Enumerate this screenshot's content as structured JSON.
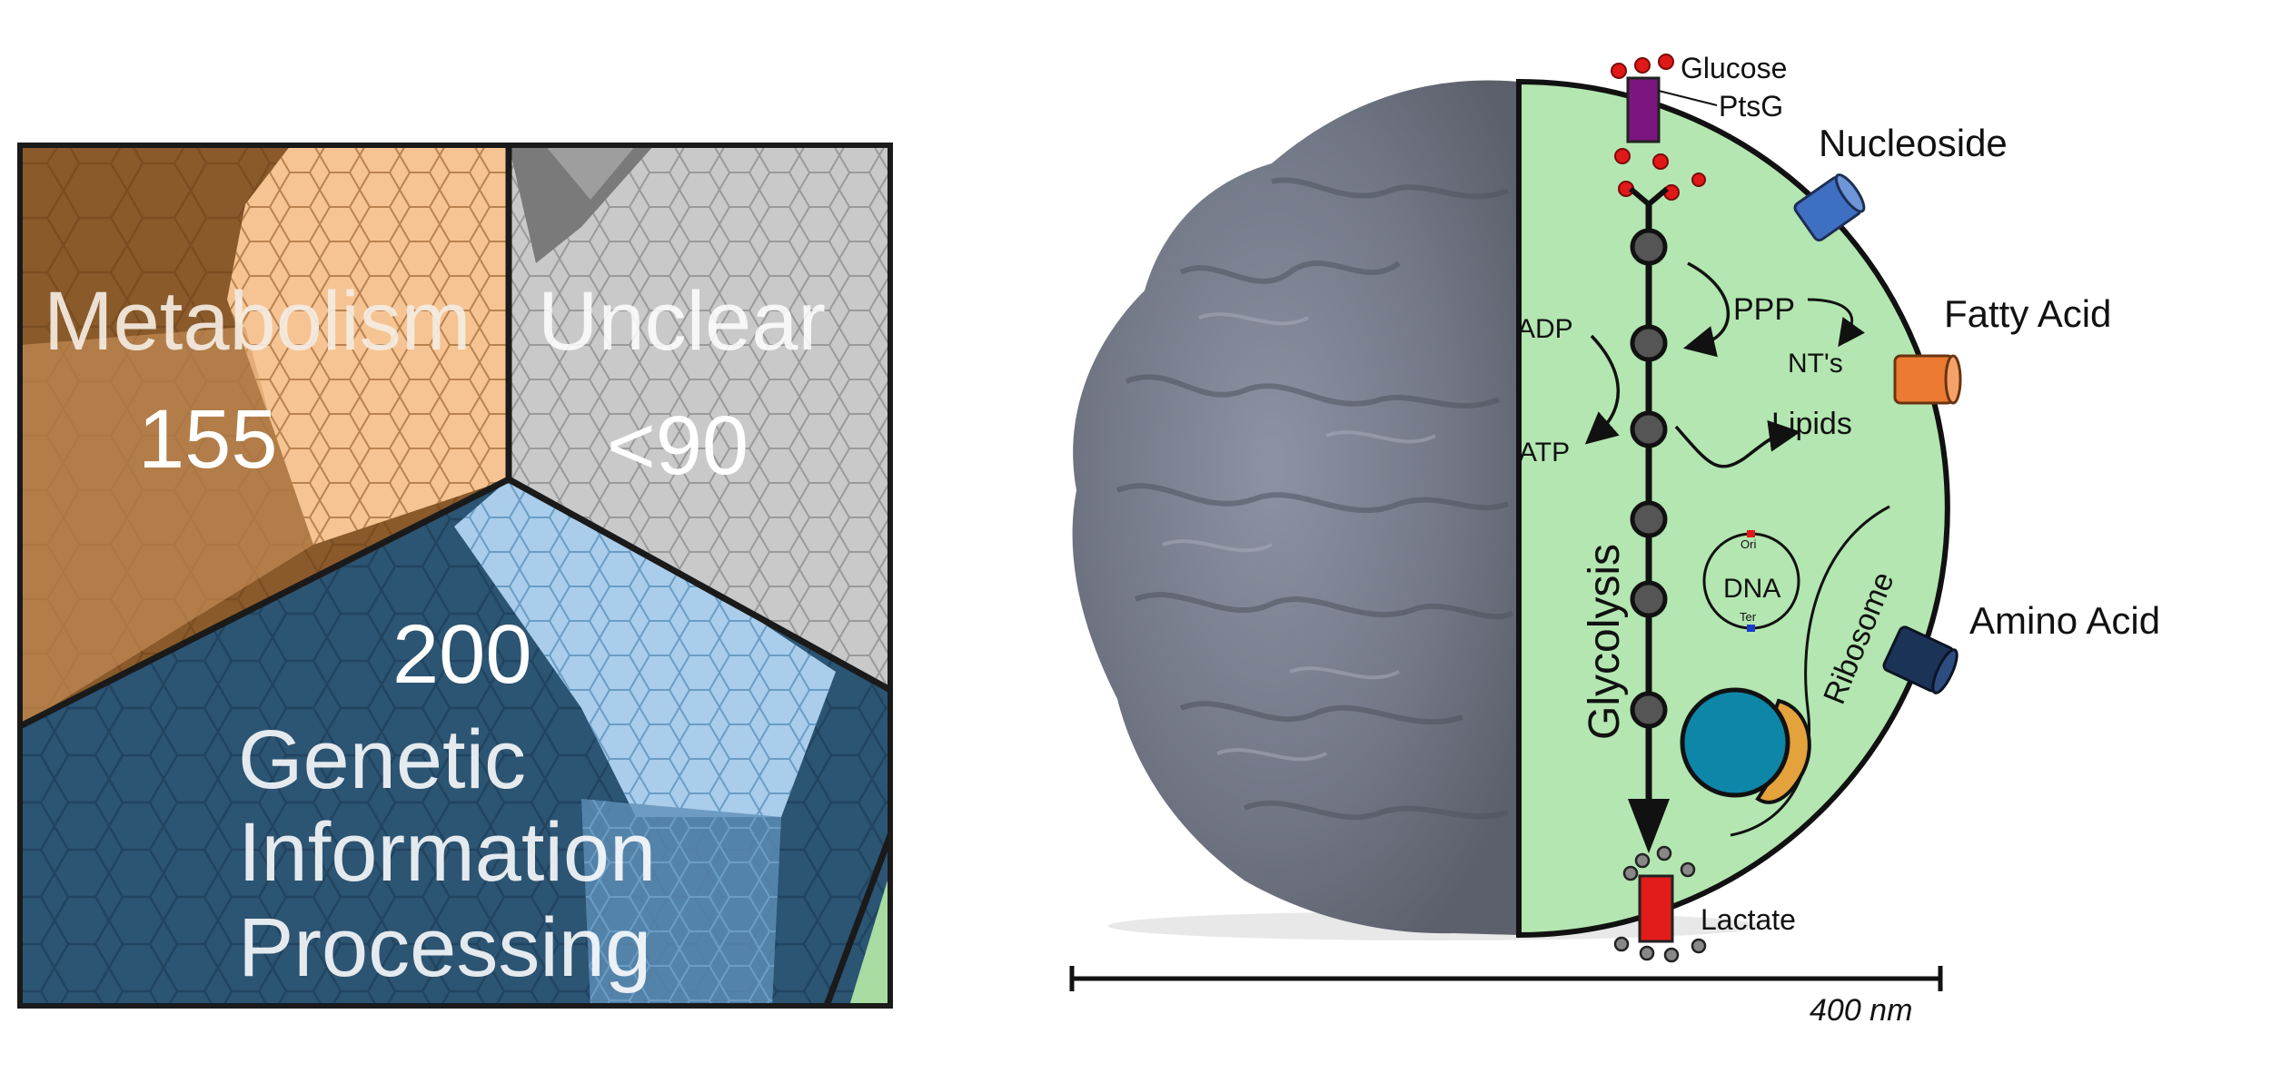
{
  "voronoi": {
    "metabolism_label": "Metabolism",
    "metabolism_count": "155",
    "unclear_label": "Unclear",
    "unclear_count": "<90",
    "genetic_count": "200",
    "genetic_label_line1": "Genetic",
    "genetic_label_line2": "Information",
    "genetic_label_line3": "Processing",
    "colors": {
      "metabolism_dark": "#8a5a2b",
      "metabolism_light": "#f6c493",
      "unclear": "#c9c9c9",
      "unclear_dark": "#7a7a7a",
      "genetic_dark": "#2c5473",
      "genetic_light": "#a9cdea",
      "corner_green": "#a8dca3"
    }
  },
  "cell": {
    "glucose_label": "Glucose",
    "ptsg_label": "PtsG",
    "adp_label": "ADP",
    "atp_label": "ATP",
    "ppp_label": "PPP",
    "nts_label": "NT's",
    "lipids_label": "Lipids",
    "glycolysis_label": "Glycolysis",
    "dna_label": "DNA",
    "ori_label": "Ori",
    "ter_label": "Ter",
    "ribosome_label": "Ribosome",
    "lactate_label": "Lactate",
    "transporters": {
      "nucleoside": "Nucleoside",
      "fatty_acid": "Fatty Acid",
      "amino_acid": "Amino Acid"
    },
    "scale_label": "400 nm",
    "colors": {
      "cytoplasm": "#b3e6b0",
      "glucose": "#e01818",
      "ptsg": "#7b1580",
      "lactate": "#e21b1b",
      "nucleoside": "#3f6fc2",
      "fatty_acid": "#ec7a33",
      "amino_acid": "#1c3358",
      "ribosome_large": "#0e86a8",
      "ribosome_small": "#e3a23c"
    }
  }
}
